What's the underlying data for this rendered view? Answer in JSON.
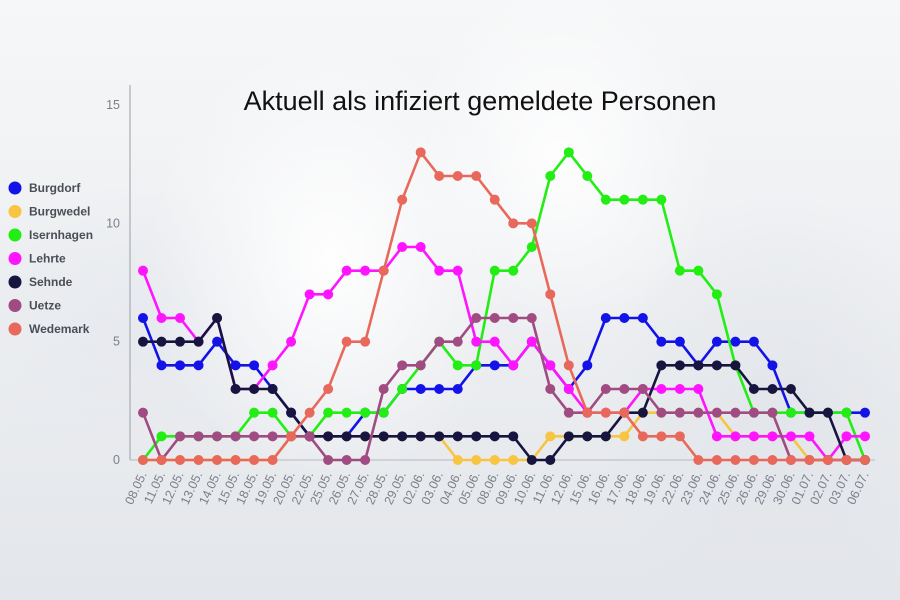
{
  "chart_data": {
    "type": "line",
    "title": "Aktuell als infiziert gemeldete Personen",
    "xlabel": "",
    "ylabel": "",
    "ylim": [
      0,
      15
    ],
    "yticks": [
      0,
      5,
      10,
      15
    ],
    "grid": false,
    "legend_position": "left",
    "x": [
      "08.05.",
      "11.05.",
      "12.05.",
      "13.05.",
      "14.05.",
      "15.05.",
      "18.05.",
      "19.05.",
      "20.05.",
      "22.05.",
      "25.05.",
      "26.05.",
      "27.05.",
      "28.05.",
      "29.05.",
      "02.06.",
      "03.06.",
      "04.06.",
      "05.06.",
      "08.06.",
      "09.06.",
      "10.06.",
      "11.06.",
      "12.06.",
      "15.06.",
      "16.06.",
      "17.06.",
      "18.06.",
      "19.06.",
      "22.06.",
      "23.06.",
      "24.06.",
      "25.06.",
      "26.06.",
      "29.06.",
      "30.06.",
      "01.07.",
      "02.07.",
      "03.07.",
      "06.07."
    ],
    "series": [
      {
        "name": "Burgdorf",
        "color": "#1313e8",
        "values": [
          6,
          4,
          4,
          4,
          5,
          4,
          4,
          3,
          2,
          1,
          1,
          1,
          2,
          2,
          3,
          3,
          3,
          3,
          4,
          4,
          4,
          5,
          4,
          3,
          4,
          6,
          6,
          6,
          5,
          5,
          4,
          5,
          5,
          5,
          4,
          2,
          2,
          2,
          2,
          2
        ]
      },
      {
        "name": "Burgwedel",
        "color": "#f7c542",
        "values": [
          0,
          0,
          0,
          0,
          0,
          0,
          0,
          0,
          1,
          1,
          1,
          1,
          1,
          1,
          1,
          1,
          1,
          0,
          0,
          0,
          0,
          0,
          1,
          1,
          1,
          1,
          1,
          2,
          2,
          2,
          2,
          2,
          1,
          1,
          1,
          1,
          0,
          0,
          0,
          0
        ]
      },
      {
        "name": "Isernhagen",
        "color": "#22ee14",
        "values": [
          0,
          1,
          1,
          1,
          1,
          1,
          2,
          2,
          1,
          1,
          2,
          2,
          2,
          2,
          3,
          4,
          5,
          4,
          4,
          8,
          8,
          9,
          12,
          13,
          12,
          11,
          11,
          11,
          11,
          8,
          8,
          7,
          4,
          2,
          2,
          2,
          2,
          2,
          2,
          0
        ]
      },
      {
        "name": "Lehrte",
        "color": "#ff14ff",
        "values": [
          8,
          6,
          6,
          5,
          6,
          3,
          3,
          4,
          5,
          7,
          7,
          8,
          8,
          8,
          9,
          9,
          8,
          8,
          5,
          5,
          4,
          5,
          4,
          3,
          2,
          2,
          2,
          3,
          3,
          3,
          3,
          1,
          1,
          1,
          1,
          1,
          1,
          0,
          1,
          1
        ]
      },
      {
        "name": "Sehnde",
        "color": "#171440",
        "values": [
          5,
          5,
          5,
          5,
          6,
          3,
          3,
          3,
          2,
          1,
          1,
          1,
          1,
          1,
          1,
          1,
          1,
          1,
          1,
          1,
          1,
          0,
          0,
          1,
          1,
          1,
          2,
          2,
          4,
          4,
          4,
          4,
          4,
          3,
          3,
          3,
          2,
          2,
          0,
          0
        ]
      },
      {
        "name": "Uetze",
        "color": "#a04b82",
        "values": [
          2,
          0,
          1,
          1,
          1,
          1,
          1,
          1,
          1,
          1,
          0,
          0,
          0,
          3,
          4,
          4,
          5,
          5,
          6,
          6,
          6,
          6,
          3,
          2,
          2,
          3,
          3,
          3,
          2,
          2,
          2,
          2,
          2,
          2,
          2,
          0,
          0,
          0,
          0,
          0
        ]
      },
      {
        "name": "Wedemark",
        "color": "#e8695c",
        "values": [
          0,
          0,
          0,
          0,
          0,
          0,
          0,
          0,
          1,
          2,
          3,
          5,
          5,
          8,
          11,
          13,
          12,
          12,
          12,
          11,
          10,
          10,
          7,
          4,
          2,
          2,
          2,
          1,
          1,
          1,
          0,
          0,
          0,
          0,
          0,
          0,
          0,
          0,
          0,
          0
        ]
      }
    ]
  }
}
